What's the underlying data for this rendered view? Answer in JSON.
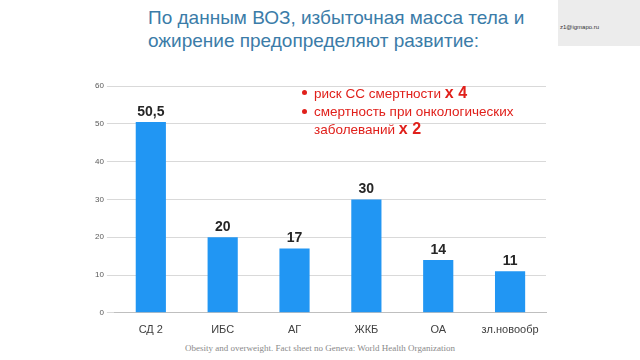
{
  "chart_data": {
    "type": "bar",
    "title": "По данным ВОЗ, избыточная масса тела и ожирение предопределяют развитие:",
    "categories": [
      "СД 2",
      "ИБС",
      "АГ",
      "ЖКБ",
      "ОА",
      "зл.новообр"
    ],
    "values": [
      50.5,
      20,
      17,
      30,
      14,
      11
    ],
    "value_labels": [
      "50,5",
      "20",
      "17",
      "30",
      "14",
      "11"
    ],
    "color": "#2196f3",
    "ylim": [
      0,
      60
    ],
    "yticks": [
      0,
      10,
      20,
      30,
      40,
      50,
      60
    ],
    "grid": true,
    "data_labels": true,
    "annotations": [
      {
        "text": "риск СС смертности",
        "factor": "х 4"
      },
      {
        "text": "смертность при онкологических заболеваний",
        "factor": "х 2"
      }
    ],
    "source": "Obesity and overweight. Fact sheet no Geneva: World Health Organization",
    "speaker": "z1@igmapo.ru"
  }
}
